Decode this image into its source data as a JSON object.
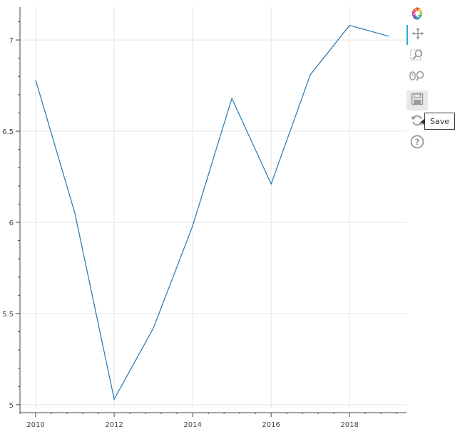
{
  "chart_data": {
    "type": "line",
    "title": "",
    "xlabel": "",
    "ylabel": "",
    "x": [
      2010,
      2011,
      2012,
      2013,
      2014,
      2015,
      2016,
      2017,
      2018,
      2019
    ],
    "series": [
      {
        "values": [
          6.78,
          6.05,
          5.03,
          5.42,
          5.98,
          6.68,
          6.21,
          6.81,
          7.08,
          7.02
        ],
        "color": "#1f77b4"
      }
    ],
    "x_ticks": [
      2010,
      2012,
      2014,
      2016,
      2018
    ],
    "x_tick_labels": [
      "2010",
      "2012",
      "2014",
      "2016",
      "2018"
    ],
    "y_ticks": [
      5,
      5.5,
      6,
      6.5,
      7
    ],
    "y_tick_labels": [
      "5",
      "5.5",
      "6",
      "6.5",
      "7"
    ],
    "xlim": [
      2009.6,
      2019.45
    ],
    "ylim": [
      4.98,
      7.18
    ],
    "grid": true,
    "legend": "none"
  },
  "toolbar": {
    "tools": [
      {
        "name": "bokeh-logo",
        "icon": "bokeh-logo-icon"
      },
      {
        "name": "pan",
        "icon": "move-arrows-icon",
        "active": true
      },
      {
        "name": "box-zoom",
        "icon": "box-zoom-icon"
      },
      {
        "name": "wheel-zoom",
        "icon": "wheel-zoom-icon"
      },
      {
        "name": "save",
        "icon": "save-icon",
        "hovered": true
      },
      {
        "name": "reset",
        "icon": "reset-icon"
      },
      {
        "name": "help",
        "icon": "help-icon"
      }
    ],
    "tooltip": "Save"
  },
  "colors": {
    "line": "#1f77b4",
    "grid": "#e5e5e5",
    "axis": "#444444",
    "accent": "#26aae1"
  }
}
